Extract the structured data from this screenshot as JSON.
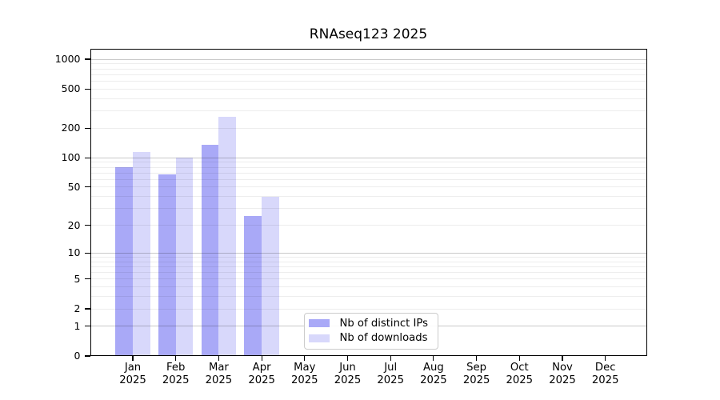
{
  "title": "RNAseq123 2025",
  "chart_data": {
    "type": "bar",
    "title": "RNAseq123 2025",
    "categories": [
      "Jan",
      "Feb",
      "Mar",
      "Apr",
      "May",
      "Jun",
      "Jul",
      "Aug",
      "Sep",
      "Oct",
      "Nov",
      "Dec"
    ],
    "category_year_label": "2025",
    "series": [
      {
        "name": "Nb of distinct IPs",
        "color": "#a9a9f7",
        "values": [
          80,
          68,
          135,
          25,
          null,
          null,
          null,
          null,
          null,
          null,
          null,
          null
        ]
      },
      {
        "name": "Nb of downloads",
        "color": "#d8d8fb",
        "values": [
          115,
          100,
          260,
          40,
          null,
          null,
          null,
          null,
          null,
          null,
          null,
          null
        ]
      }
    ],
    "y_ticks": [
      0,
      1,
      2,
      5,
      10,
      20,
      50,
      100,
      200,
      500,
      1000
    ],
    "y_scale": "log1p",
    "ylim": [
      0,
      1250
    ],
    "xlabel": "",
    "ylabel": "",
    "grid": true,
    "gridline_color_major": "#c9c9c9",
    "gridline_color_minor": "#ececec",
    "legend_position": "inside-bottom-center",
    "background_color": "#ffffff",
    "axis_color": "#000000"
  }
}
